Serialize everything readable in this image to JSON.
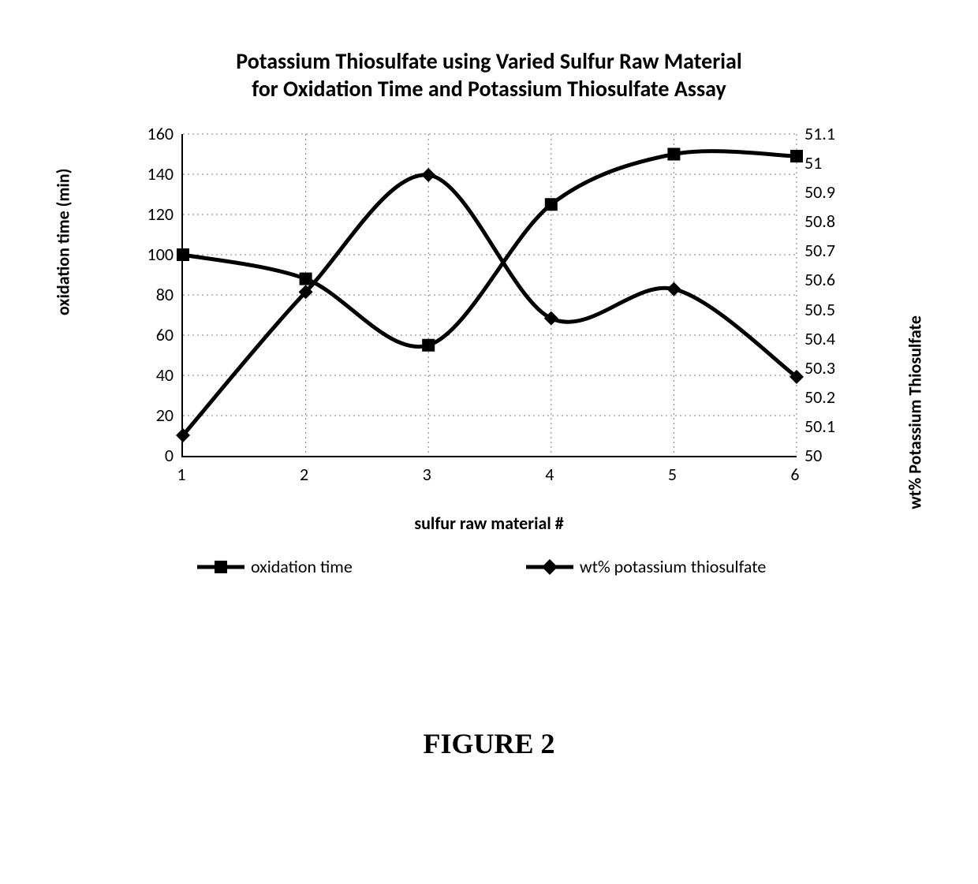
{
  "chart": {
    "type": "line-dual-axis",
    "title_line1": "Potassium Thiosulfate using Varied Sulfur Raw Material",
    "title_line2": "for Oxidation Time and Potassium Thiosulfate Assay",
    "title_fontsize": 28,
    "x": {
      "label": "sulfur raw material #",
      "label_fontweight": "bold",
      "categories": [
        1,
        2,
        3,
        4,
        5,
        6
      ],
      "min": 1,
      "max": 6,
      "tick_positions": [
        1,
        2,
        3,
        4,
        5,
        6
      ],
      "gridlines": [
        2,
        3,
        4,
        5,
        6
      ]
    },
    "y_left": {
      "label": "oxidation time (min)",
      "label_fontweight": "bold",
      "min": 0,
      "max": 160,
      "tick_step": 20,
      "tick_positions": [
        0,
        20,
        40,
        60,
        80,
        100,
        120,
        140,
        160
      ],
      "gridlines": [
        20,
        40,
        60,
        80,
        100,
        120,
        140,
        160
      ]
    },
    "y_right": {
      "label": "wt% Potassium Thiosulfate",
      "label_fontweight": "bold",
      "min": 50.0,
      "max": 51.1,
      "tick_step": 0.1,
      "tick_positions": [
        50,
        50.1,
        50.2,
        50.3,
        50.4,
        50.5,
        50.6,
        50.7,
        50.8,
        50.9,
        51,
        51.1
      ],
      "tick_labels": [
        "50",
        "50.1",
        "50.2",
        "50.3",
        "50.4",
        "50.5",
        "50.6",
        "50.7",
        "50.8",
        "50.9",
        "51",
        "51.1"
      ]
    },
    "series": {
      "oxidation_time": {
        "name": "oxidation time",
        "axis": "y_left",
        "marker": "square",
        "marker_size": 16,
        "marker_color": "#000000",
        "line_color": "#000000",
        "line_width": 5,
        "smoothed": true,
        "x": [
          1,
          2,
          3,
          4,
          5,
          6
        ],
        "y": [
          100,
          88,
          55,
          125,
          150,
          149
        ]
      },
      "wt_pct": {
        "name": "wt% potassium thiosulfate",
        "axis": "y_right",
        "marker": "diamond",
        "marker_size": 18,
        "marker_color": "#000000",
        "line_color": "#000000",
        "line_width": 5,
        "smoothed": true,
        "x": [
          1,
          2,
          3,
          4,
          5,
          6
        ],
        "y": [
          50.07,
          50.56,
          50.96,
          50.47,
          50.57,
          50.27
        ]
      }
    },
    "legend": {
      "items": [
        {
          "key": "oxidation_time",
          "label": "oxidation time"
        },
        {
          "key": "wt_pct",
          "label": "wt% potassium thiosulfate"
        }
      ],
      "fontsize": 22
    },
    "colors": {
      "background": "#ffffff",
      "axis": "#000000",
      "grid": "#7f7f7f",
      "text": "#000000"
    },
    "grid_dasharray": "2 4",
    "tick_fontsize": 22,
    "label_fontsize": 22
  },
  "figure_caption": "FIGURE 2",
  "figure_caption_fontsize": 36
}
